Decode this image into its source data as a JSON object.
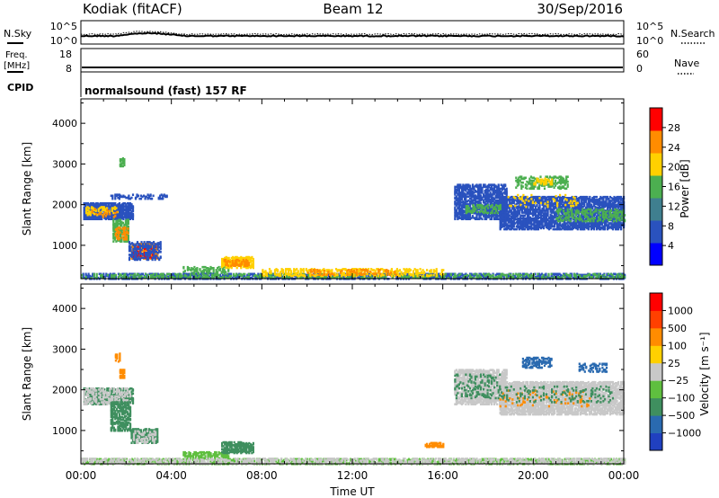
{
  "header": {
    "station": "Kodiak (fitACF)",
    "beam": "Beam 12",
    "date": "30/Sep/2016"
  },
  "summary_panels": {
    "nsky": {
      "label": "N.Sky",
      "ticks": [
        "10^5",
        "10^0"
      ]
    },
    "nsearch": {
      "label": "N.Search",
      "ticks": [
        "10^5",
        "10^0"
      ]
    },
    "freq": {
      "label": "Freq.",
      "unit": "[MHz]",
      "ticks": [
        "18",
        "8"
      ]
    },
    "nave": {
      "label": "Nave",
      "ticks": [
        "60",
        "0"
      ]
    },
    "cpid": {
      "label": "CPID",
      "text": "normalsound (fast) 157 RF"
    }
  },
  "chart_data": [
    {
      "type": "heatmap",
      "panel": "power",
      "x": [
        "00:00",
        "04:00",
        "08:00",
        "12:00",
        "16:00",
        "20:00",
        "00:00"
      ],
      "xlabel": "",
      "ylabel": "Slant Range [km]",
      "yticks": [
        "1000",
        "2000",
        "3000",
        "4000"
      ],
      "ylim": [
        180,
        4600
      ],
      "colorbar": {
        "label": "Power [dB]",
        "ticks": [
          "4",
          "8",
          "12",
          "16",
          "20",
          "24",
          "28"
        ],
        "range": [
          0,
          32
        ],
        "colors": [
          "#0000ff",
          "#2a52be",
          "#3f7f8f",
          "#4caf50",
          "#ffd000",
          "#ff8c00",
          "#ff0000"
        ]
      },
      "regions": [
        {
          "t0": 0.1,
          "t1": 2.3,
          "r0": 1650,
          "r1": 2050,
          "color": "#2a52be",
          "density": 0.75
        },
        {
          "t0": 0.2,
          "t1": 1.7,
          "r0": 1750,
          "r1": 1950,
          "color": "#ffd000",
          "density": 0.25
        },
        {
          "t0": 0.4,
          "t1": 1.6,
          "r0": 1700,
          "r1": 1900,
          "color": "#ff8c00",
          "density": 0.12
        },
        {
          "t0": 1.4,
          "t1": 2.1,
          "r0": 1100,
          "r1": 1650,
          "color": "#4caf50",
          "density": 0.55
        },
        {
          "t0": 1.5,
          "t1": 2.1,
          "r0": 1150,
          "r1": 1450,
          "color": "#ff8c00",
          "density": 0.35
        },
        {
          "t0": 2.2,
          "t1": 3.4,
          "r0": 680,
          "r1": 1050,
          "color": "#ff8c00",
          "density": 0.55
        },
        {
          "t0": 2.3,
          "t1": 3.3,
          "r0": 700,
          "r1": 1000,
          "color": "#ff0000",
          "density": 0.25
        },
        {
          "t0": 2.1,
          "t1": 3.5,
          "r0": 650,
          "r1": 1100,
          "color": "#2a52be",
          "density": 0.4
        },
        {
          "t0": 1.3,
          "t1": 3.2,
          "r0": 2150,
          "r1": 2250,
          "color": "#2a52be",
          "density": 0.25
        },
        {
          "t0": 4.5,
          "t1": 6.5,
          "r0": 300,
          "r1": 480,
          "color": "#4caf50",
          "density": 0.35
        },
        {
          "t0": 6.2,
          "t1": 7.6,
          "r0": 450,
          "r1": 720,
          "color": "#ffd000",
          "density": 0.6
        },
        {
          "t0": 6.3,
          "t1": 7.4,
          "r0": 500,
          "r1": 650,
          "color": "#ff8c00",
          "density": 0.35
        },
        {
          "t0": 0.0,
          "t1": 24.0,
          "r0": 180,
          "r1": 320,
          "color": "#2a52be",
          "density": 0.5
        },
        {
          "t0": 0.0,
          "t1": 24.0,
          "r0": 200,
          "r1": 300,
          "color": "#4caf50",
          "density": 0.25
        },
        {
          "t0": 8.0,
          "t1": 16.0,
          "r0": 250,
          "r1": 420,
          "color": "#ffd000",
          "density": 0.3
        },
        {
          "t0": 10.0,
          "t1": 14.0,
          "r0": 280,
          "r1": 420,
          "color": "#ff8c00",
          "density": 0.2
        },
        {
          "t0": 16.5,
          "t1": 18.8,
          "r0": 1650,
          "r1": 2500,
          "color": "#2a52be",
          "density": 0.55
        },
        {
          "t0": 18.5,
          "t1": 24.0,
          "r0": 1400,
          "r1": 2200,
          "color": "#2a52be",
          "density": 0.6
        },
        {
          "t0": 17.0,
          "t1": 18.5,
          "r0": 1800,
          "r1": 2000,
          "color": "#4caf50",
          "density": 0.3
        },
        {
          "t0": 21.0,
          "t1": 24.0,
          "r0": 1600,
          "r1": 1900,
          "color": "#4caf50",
          "density": 0.3
        },
        {
          "t0": 19.2,
          "t1": 21.5,
          "r0": 2400,
          "r1": 2700,
          "color": "#4caf50",
          "density": 0.35
        },
        {
          "t0": 20.0,
          "t1": 20.8,
          "r0": 2500,
          "r1": 2650,
          "color": "#ffd000",
          "density": 0.35
        },
        {
          "t0": 18.8,
          "t1": 22.0,
          "r0": 1950,
          "r1": 2250,
          "color": "#ffd000",
          "density": 0.08
        },
        {
          "t0": 3.4,
          "t1": 3.8,
          "r0": 2150,
          "r1": 2250,
          "color": "#2a52be",
          "density": 0.5
        },
        {
          "t0": 1.7,
          "t1": 1.9,
          "r0": 2950,
          "r1": 3150,
          "color": "#4caf50",
          "density": 0.5
        }
      ]
    },
    {
      "type": "heatmap",
      "panel": "velocity",
      "x": [
        "00:00",
        "04:00",
        "08:00",
        "12:00",
        "16:00",
        "20:00",
        "00:00"
      ],
      "xlabel": "Time UT",
      "ylabel": "Slant Range [km]",
      "yticks": [
        "1000",
        "2000",
        "3000",
        "4000"
      ],
      "ylim": [
        180,
        4600
      ],
      "colorbar": {
        "label": "Velocity [m s⁻¹]",
        "ticks": [
          "1000",
          "500",
          "100",
          "25",
          "−25",
          "−100",
          "−500",
          "−1000"
        ],
        "range": [
          -1000,
          1000
        ],
        "colors": [
          "#2040c0",
          "#2a6ab0",
          "#3f8f5f",
          "#5fbf3f",
          "#c8c8c8",
          "#ffd000",
          "#ff8c00",
          "#ff4000",
          "#ff0000"
        ]
      },
      "regions": [
        {
          "t0": 0.1,
          "t1": 2.3,
          "r0": 1650,
          "r1": 2050,
          "color": "#3f8f5f",
          "density": 0.6
        },
        {
          "t0": 0.1,
          "t1": 2.2,
          "r0": 1650,
          "r1": 2050,
          "color": "#c8c8c8",
          "density": 0.3
        },
        {
          "t0": 1.3,
          "t1": 2.2,
          "r0": 1000,
          "r1": 1700,
          "color": "#3f8f5f",
          "density": 0.55
        },
        {
          "t0": 2.2,
          "t1": 3.4,
          "r0": 700,
          "r1": 1050,
          "color": "#3f8f5f",
          "density": 0.55
        },
        {
          "t0": 2.3,
          "t1": 3.3,
          "r0": 700,
          "r1": 1000,
          "color": "#c8c8c8",
          "density": 0.25
        },
        {
          "t0": 1.7,
          "t1": 1.9,
          "r0": 2300,
          "r1": 2500,
          "color": "#ff8c00",
          "density": 0.6
        },
        {
          "t0": 1.5,
          "t1": 1.7,
          "r0": 2700,
          "r1": 2900,
          "color": "#ff8c00",
          "density": 0.5
        },
        {
          "t0": 4.5,
          "t1": 6.5,
          "r0": 300,
          "r1": 480,
          "color": "#5fbf3f",
          "density": 0.4
        },
        {
          "t0": 6.2,
          "t1": 7.6,
          "r0": 450,
          "r1": 720,
          "color": "#3f8f5f",
          "density": 0.6
        },
        {
          "t0": 0.0,
          "t1": 24.0,
          "r0": 180,
          "r1": 320,
          "color": "#5fbf3f",
          "density": 0.45
        },
        {
          "t0": 0.0,
          "t1": 24.0,
          "r0": 190,
          "r1": 330,
          "color": "#c8c8c8",
          "density": 0.35
        },
        {
          "t0": 15.2,
          "t1": 16.0,
          "r0": 600,
          "r1": 700,
          "color": "#ff8c00",
          "density": 0.6
        },
        {
          "t0": 16.5,
          "t1": 18.8,
          "r0": 1650,
          "r1": 2500,
          "color": "#c8c8c8",
          "density": 0.55
        },
        {
          "t0": 18.5,
          "t1": 24.0,
          "r0": 1400,
          "r1": 2200,
          "color": "#c8c8c8",
          "density": 0.65
        },
        {
          "t0": 16.5,
          "t1": 18.5,
          "r0": 1800,
          "r1": 2400,
          "color": "#3f8f5f",
          "density": 0.15
        },
        {
          "t0": 19.5,
          "t1": 20.8,
          "r0": 2550,
          "r1": 2800,
          "color": "#2a6ab0",
          "density": 0.45
        },
        {
          "t0": 22.0,
          "t1": 23.2,
          "r0": 2450,
          "r1": 2650,
          "color": "#2a6ab0",
          "density": 0.3
        },
        {
          "t0": 18.5,
          "t1": 22.5,
          "r0": 1600,
          "r1": 2000,
          "color": "#ff8c00",
          "density": 0.07
        },
        {
          "t0": 18.5,
          "t1": 23.5,
          "r0": 1700,
          "r1": 2100,
          "color": "#3f8f5f",
          "density": 0.1
        }
      ]
    }
  ]
}
